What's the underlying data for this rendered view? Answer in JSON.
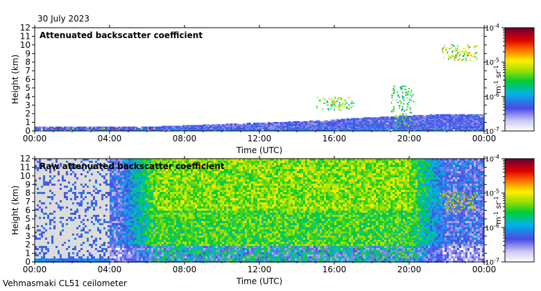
{
  "date_label": "30 July 2023",
  "instrument_label": "Vehmasmaki CL51 ceilometer",
  "chart_data": [
    {
      "type": "heatmap",
      "title": "Attenuated backscatter coefficient",
      "xlabel": "Time (UTC)",
      "ylabel": "Height (km)",
      "xticks": [
        "00:00",
        "04:00",
        "08:00",
        "12:00",
        "16:00",
        "20:00",
        "00:00"
      ],
      "xlim_hours": [
        0,
        24
      ],
      "ylim": [
        0,
        12
      ],
      "yticks": [
        0,
        1,
        2,
        3,
        4,
        5,
        6,
        7,
        8,
        9,
        10,
        11,
        12
      ],
      "colorbar": {
        "label": "m-1 sr-1",
        "scale": "log",
        "range": [
          1e-07,
          0.0001
        ],
        "tick_labels": [
          "10-4",
          "10-5",
          "10-6",
          "10-7"
        ],
        "tick_exponents": [
          -4,
          -5,
          -6,
          -7
        ]
      },
      "features": [
        {
          "name": "surface aerosol layer",
          "time_hours": [
            0,
            24
          ],
          "height_km": [
            0,
            0.3
          ],
          "level_exp": -6.6
        },
        {
          "name": "boundary layer growth",
          "time_hours": [
            6,
            24
          ],
          "height_km": [
            0,
            1.7
          ],
          "level_exp": -6.5
        },
        {
          "name": "scattered clouds",
          "time_hours": [
            15,
            17
          ],
          "height_km": [
            2.5,
            4
          ],
          "level_exp": -5.5
        },
        {
          "name": "convective cloud",
          "time_hours": [
            19,
            20.2
          ],
          "height_km": [
            0.5,
            5.3
          ],
          "level_exp": -5.8
        },
        {
          "name": "high cloud",
          "time_hours": [
            21.6,
            23.6
          ],
          "height_km": [
            8.3,
            10.1
          ],
          "level_exp": -5.4
        }
      ]
    },
    {
      "type": "heatmap",
      "title": "Raw attenuated backscatter coefficient",
      "xlabel": "Time (UTC)",
      "ylabel": "Height (km)",
      "xticks": [
        "00:00",
        "04:00",
        "08:00",
        "12:00",
        "16:00",
        "20:00",
        "00:00"
      ],
      "xlim_hours": [
        0,
        24
      ],
      "ylim": [
        0,
        12
      ],
      "yticks": [
        0,
        1,
        2,
        3,
        4,
        5,
        6,
        7,
        8,
        9,
        10,
        11,
        12
      ],
      "colorbar": {
        "label": "m-1 sr-1",
        "scale": "log",
        "range": [
          1e-07,
          0.0001
        ],
        "tick_labels": [
          "10-4",
          "10-5",
          "10-6",
          "10-7"
        ],
        "tick_exponents": [
          -4,
          -5,
          -6,
          -7
        ]
      },
      "features": [
        {
          "name": "noise (daytime)",
          "time_hours": [
            5,
            22
          ],
          "height_km": [
            2,
            12
          ],
          "level_exp": -5.5
        },
        {
          "name": "missing data",
          "time_hours": [
            0,
            4
          ],
          "height_km": [
            0.6,
            12
          ],
          "level_exp": null
        },
        {
          "name": "convective cloud",
          "time_hours": [
            19,
            20.2
          ],
          "height_km": [
            0.5,
            4.8
          ],
          "level_exp": -5.8
        },
        {
          "name": "high cloud",
          "time_hours": [
            21.6,
            23.6
          ],
          "height_km": [
            6,
            8.3
          ],
          "level_exp": -5.3
        }
      ]
    }
  ]
}
